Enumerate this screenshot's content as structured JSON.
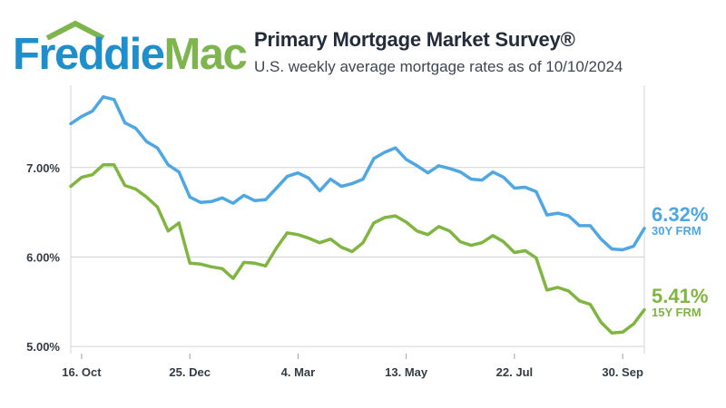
{
  "header": {
    "logo_word1": "Freddie",
    "logo_word2": "Mac",
    "title": "Primary Mortgage Market Survey®",
    "subtitle": "U.S. weekly average mortgage rates as of 10/10/2024"
  },
  "colors": {
    "brand_blue": "#1e8fcb",
    "brand_green": "#7fb54e",
    "series_30y": "#4ea7e3",
    "series_15y": "#7fb540",
    "grid": "#d0d4d8",
    "axis_text": "#333b45"
  },
  "chart_data": {
    "type": "line",
    "title": "Primary Mortgage Market Survey®",
    "subtitle": "U.S. weekly average mortgage rates as of 10/10/2024",
    "x_tick_labels": [
      "16. Oct",
      "25. Dec",
      "4. Mar",
      "13. May",
      "22. Jul",
      "30. Sep"
    ],
    "x_tick_week_index": [
      1,
      11,
      21,
      31,
      41,
      51
    ],
    "y_tick_labels": [
      "5.00%",
      "6.00%",
      "7.00%"
    ],
    "y_ticks": [
      5.0,
      6.0,
      7.0
    ],
    "ylim": [
      4.92,
      7.92
    ],
    "grid": true,
    "series": [
      {
        "name": "30Y FRM",
        "end_label": "6.32%",
        "values": [
          7.49,
          7.57,
          7.63,
          7.79,
          7.76,
          7.5,
          7.44,
          7.29,
          7.22,
          7.03,
          6.95,
          6.67,
          6.61,
          6.62,
          6.66,
          6.6,
          6.69,
          6.63,
          6.64,
          6.77,
          6.9,
          6.94,
          6.88,
          6.74,
          6.87,
          6.79,
          6.82,
          6.87,
          7.1,
          7.17,
          7.22,
          7.09,
          7.02,
          6.94,
          7.02,
          6.99,
          6.95,
          6.87,
          6.86,
          6.95,
          6.89,
          6.77,
          6.78,
          6.73,
          6.47,
          6.49,
          6.46,
          6.35,
          6.35,
          6.2,
          6.09,
          6.08,
          6.12,
          6.32
        ]
      },
      {
        "name": "15Y FRM",
        "end_label": "5.41%",
        "values": [
          6.79,
          6.89,
          6.92,
          7.03,
          7.03,
          6.8,
          6.76,
          6.67,
          6.56,
          6.29,
          6.38,
          5.93,
          5.92,
          5.89,
          5.87,
          5.76,
          5.94,
          5.93,
          5.9,
          6.1,
          6.27,
          6.25,
          6.21,
          6.16,
          6.2,
          6.11,
          6.06,
          6.16,
          6.38,
          6.44,
          6.46,
          6.39,
          6.29,
          6.25,
          6.34,
          6.29,
          6.17,
          6.13,
          6.16,
          6.24,
          6.17,
          6.05,
          6.07,
          5.99,
          5.63,
          5.66,
          5.62,
          5.51,
          5.47,
          5.27,
          5.15,
          5.16,
          5.25,
          5.41
        ]
      }
    ]
  }
}
